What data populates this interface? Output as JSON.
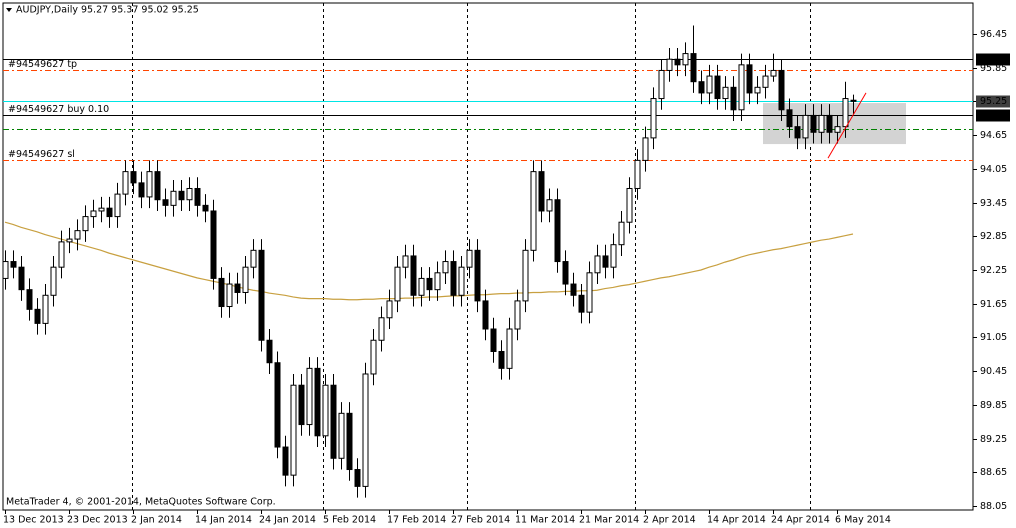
{
  "chart_data": {
    "type": "candlestick",
    "title": "AUDJPY,Daily  95.27 95.37 95.02 95.25",
    "footer": "MetaTrader 4, © 2001-2014, MetaQuotes Software Corp.",
    "categories": [
      "13 Dec 2013",
      null,
      null,
      null,
      null,
      null,
      null,
      null,
      "23 Dec 2013",
      null,
      null,
      null,
      null,
      null,
      null,
      null,
      "2 Jan 2014",
      null,
      null,
      null,
      null,
      null,
      null,
      null,
      "14 Jan 2014",
      null,
      null,
      null,
      null,
      null,
      null,
      null,
      "24 Jan 2014",
      null,
      null,
      null,
      null,
      null,
      null,
      null,
      "5 Feb 2014",
      null,
      null,
      null,
      null,
      null,
      null,
      null,
      "17 Feb 2014",
      null,
      null,
      null,
      null,
      null,
      null,
      null,
      "27 Feb 2014",
      null,
      null,
      null,
      null,
      null,
      null,
      null,
      "11 Mar 2014",
      null,
      null,
      null,
      null,
      null,
      null,
      null,
      "21 Mar 2014",
      null,
      null,
      null,
      null,
      null,
      null,
      null,
      "2 Apr 2014",
      null,
      null,
      null,
      null,
      null,
      null,
      null,
      "14 Apr 2014",
      null,
      null,
      null,
      null,
      null,
      null,
      null,
      "24 Apr 2014",
      null,
      null,
      null,
      null,
      null,
      null,
      null,
      "6 May 2014",
      null,
      null
    ],
    "open": [
      92.1,
      92.4,
      92.3,
      91.9,
      91.55,
      91.3,
      91.8,
      92.3,
      92.75,
      92.8,
      92.95,
      93.2,
      93.3,
      93.35,
      93.2,
      93.6,
      94.0,
      93.8,
      93.55,
      94.0,
      93.5,
      93.4,
      93.65,
      93.5,
      93.7,
      93.4,
      93.3,
      92.1,
      91.6,
      92.0,
      91.85,
      92.3,
      92.6,
      91.0,
      90.6,
      89.1,
      88.6,
      90.2,
      89.5,
      90.5,
      89.3,
      90.2,
      88.9,
      89.7,
      88.7,
      88.4,
      90.4,
      91.0,
      91.4,
      91.7,
      92.3,
      92.5,
      91.8,
      92.1,
      91.9,
      92.2,
      92.4,
      91.8,
      92.3,
      92.6,
      91.7,
      91.2,
      90.8,
      90.5,
      91.2,
      91.7,
      92.6,
      94.0,
      93.3,
      93.5,
      92.4,
      92.0,
      91.8,
      91.5,
      92.2,
      92.5,
      92.3,
      92.7,
      93.1,
      93.7,
      94.2,
      94.6,
      95.3,
      95.8,
      96.0,
      95.9,
      96.1,
      95.6,
      95.4,
      95.7,
      95.3,
      95.5,
      95.1,
      95.9,
      95.4,
      95.5,
      95.7,
      95.8,
      95.1,
      94.8,
      94.6,
      95.0,
      94.7,
      95.0,
      94.7,
      94.8,
      95.27
    ],
    "high": [
      92.6,
      92.6,
      92.5,
      92.1,
      91.75,
      92.0,
      92.5,
      92.95,
      93.0,
      93.15,
      93.4,
      93.5,
      93.55,
      93.55,
      93.8,
      94.2,
      94.2,
      94.0,
      94.2,
      94.2,
      93.7,
      93.85,
      93.85,
      93.9,
      93.9,
      93.6,
      93.5,
      92.3,
      92.2,
      92.2,
      92.5,
      92.8,
      92.8,
      91.2,
      90.8,
      89.3,
      90.4,
      90.4,
      90.7,
      90.7,
      90.4,
      90.4,
      89.9,
      89.9,
      88.9,
      90.6,
      91.2,
      91.6,
      91.9,
      92.5,
      92.7,
      92.7,
      92.3,
      92.3,
      92.4,
      92.6,
      92.6,
      92.5,
      92.8,
      92.8,
      91.9,
      91.4,
      91.0,
      91.4,
      91.9,
      92.8,
      94.2,
      94.2,
      93.7,
      93.7,
      92.6,
      92.2,
      92.0,
      92.4,
      92.7,
      92.7,
      92.9,
      93.3,
      93.9,
      94.4,
      94.8,
      95.5,
      96.0,
      96.2,
      96.2,
      96.3,
      96.6,
      95.8,
      95.9,
      95.9,
      95.7,
      95.7,
      96.1,
      96.1,
      95.7,
      95.9,
      96.1,
      96.0,
      95.3,
      95.0,
      95.2,
      95.2,
      95.2,
      95.2,
      95.0,
      95.6,
      95.37
    ],
    "low": [
      91.9,
      92.1,
      91.7,
      91.35,
      91.1,
      91.1,
      91.6,
      92.1,
      92.55,
      92.6,
      92.75,
      93.0,
      93.1,
      93.0,
      93.0,
      93.4,
      93.6,
      93.35,
      93.35,
      93.3,
      93.2,
      93.2,
      93.3,
      93.3,
      93.2,
      93.1,
      91.9,
      91.4,
      91.4,
      91.65,
      91.65,
      92.1,
      90.8,
      90.4,
      88.9,
      88.4,
      88.4,
      89.3,
      89.3,
      89.1,
      89.1,
      88.7,
      88.7,
      88.5,
      88.2,
      88.2,
      90.2,
      90.8,
      91.2,
      91.5,
      92.1,
      91.6,
      91.6,
      91.7,
      91.7,
      92.0,
      91.6,
      91.6,
      92.1,
      91.5,
      91.0,
      90.6,
      90.3,
      90.3,
      91.0,
      91.5,
      92.4,
      93.1,
      93.1,
      92.2,
      91.8,
      91.6,
      91.3,
      91.3,
      92.0,
      92.1,
      92.1,
      92.5,
      92.9,
      93.5,
      94.0,
      94.4,
      95.1,
      95.6,
      95.7,
      95.7,
      95.4,
      95.2,
      95.2,
      95.1,
      95.1,
      94.9,
      94.9,
      95.2,
      95.2,
      95.3,
      95.6,
      94.9,
      94.6,
      94.4,
      94.4,
      94.5,
      94.5,
      94.5,
      94.5,
      94.6,
      95.02
    ],
    "close": [
      92.4,
      92.3,
      91.9,
      91.55,
      91.3,
      91.8,
      92.3,
      92.75,
      92.8,
      92.95,
      93.2,
      93.3,
      93.35,
      93.2,
      93.6,
      94.0,
      93.8,
      93.55,
      94.0,
      93.5,
      93.4,
      93.65,
      93.5,
      93.7,
      93.4,
      93.3,
      92.1,
      91.6,
      92.0,
      91.85,
      92.3,
      92.6,
      91.0,
      90.6,
      89.1,
      88.6,
      90.2,
      89.5,
      90.5,
      89.3,
      90.2,
      88.9,
      89.7,
      88.7,
      88.4,
      90.4,
      91.0,
      91.4,
      91.7,
      92.3,
      92.5,
      91.8,
      92.1,
      91.9,
      92.2,
      92.4,
      91.8,
      92.3,
      92.6,
      91.7,
      91.2,
      90.8,
      90.5,
      91.2,
      91.7,
      92.6,
      94.0,
      93.3,
      93.5,
      92.4,
      92.0,
      91.8,
      91.5,
      92.2,
      92.5,
      92.3,
      92.7,
      93.1,
      93.7,
      94.2,
      94.6,
      95.3,
      95.8,
      96.0,
      95.9,
      96.1,
      95.6,
      95.4,
      95.7,
      95.3,
      95.5,
      95.1,
      95.9,
      95.4,
      95.5,
      95.7,
      95.8,
      95.1,
      94.8,
      94.6,
      95.0,
      94.7,
      95.0,
      94.7,
      94.8,
      95.3,
      95.25
    ],
    "ma": {
      "color": "#c8a040",
      "values": [
        93.1,
        93.06,
        93.01,
        92.97,
        92.93,
        92.88,
        92.84,
        92.8,
        92.76,
        92.72,
        92.68,
        92.64,
        92.6,
        92.55,
        92.51,
        92.47,
        92.43,
        92.39,
        92.35,
        92.31,
        92.27,
        92.23,
        92.19,
        92.15,
        92.11,
        92.08,
        92.05,
        92.02,
        91.99,
        91.95,
        91.92,
        91.89,
        91.87,
        91.84,
        91.82,
        91.8,
        91.77,
        91.75,
        91.74,
        91.74,
        91.74,
        91.73,
        91.73,
        91.72,
        91.72,
        91.73,
        91.73,
        91.74,
        91.74,
        91.74,
        91.75,
        91.75,
        91.76,
        91.77,
        91.77,
        91.78,
        91.79,
        91.79,
        91.8,
        91.81,
        91.81,
        91.82,
        91.83,
        91.83,
        91.84,
        91.84,
        91.85,
        91.85,
        91.86,
        91.86,
        91.87,
        91.87,
        91.88,
        91.88,
        91.89,
        91.92,
        91.94,
        91.97,
        91.99,
        92.02,
        92.05,
        92.08,
        92.11,
        92.13,
        92.16,
        92.19,
        92.22,
        92.25,
        92.3,
        92.34,
        92.39,
        92.43,
        92.48,
        92.52,
        92.55,
        92.58,
        92.61,
        92.63,
        92.66,
        92.69,
        92.72,
        92.75,
        92.78,
        92.8,
        92.83,
        92.86,
        92.89
      ]
    },
    "levels": [
      {
        "value": 96.0,
        "axis_label": "96.00",
        "color": "#000000",
        "dash": "none"
      },
      {
        "value": 95.8,
        "label": "#94549627 tp",
        "color": "#ff4500",
        "dash": "6 3 2 3"
      },
      {
        "value": 95.25,
        "color": "#00e5e5",
        "dash": "none"
      },
      {
        "value": 95.0,
        "label": "#94549627 buy 0.10",
        "axis_label": "95.00",
        "color": "#000000",
        "dash": "none"
      },
      {
        "value": 94.76,
        "color": "#008000",
        "dash": "6 3 2 3"
      },
      {
        "value": 94.21,
        "label": "#94549627 sl",
        "color": "#ff4500",
        "dash": "6 3 2 3"
      }
    ],
    "rectangle": {
      "top": 95.22,
      "bottom": 94.49,
      "color": "#d3d3d3"
    },
    "trendline": {
      "from": 94.24,
      "to": 95.4,
      "color": "#ff0000"
    },
    "bull_color": "#ffffff",
    "bear_color": "#000000",
    "ylim": [
      87.98,
      97.0
    ],
    "yticks": [
      96.45,
      95.85,
      95.25,
      94.65,
      94.05,
      93.45,
      92.85,
      92.25,
      91.65,
      91.05,
      90.45,
      89.85,
      89.25,
      88.65,
      88.05
    ]
  }
}
